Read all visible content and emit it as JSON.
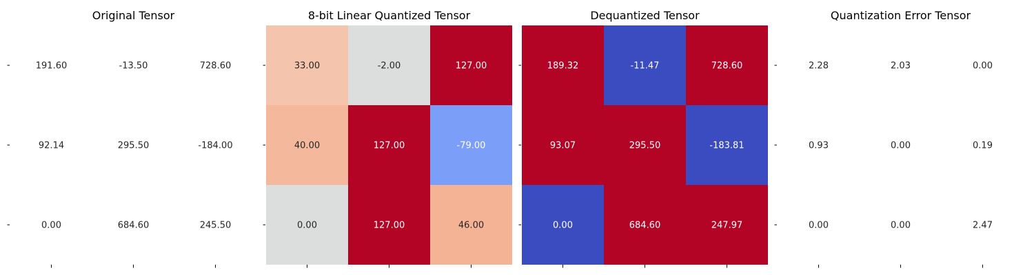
{
  "chart_data": [
    {
      "type": "heatmap",
      "title": "Original Tensor",
      "values": [
        [
          191.6,
          -13.5,
          728.6
        ],
        [
          92.14,
          295.5,
          -184.0
        ],
        [
          0.0,
          684.6,
          245.5
        ]
      ],
      "labels": [
        [
          "191.60",
          "-13.50",
          "728.60"
        ],
        [
          "92.14",
          "295.50",
          "-184.00"
        ],
        [
          "0.00",
          "684.60",
          "245.50"
        ]
      ],
      "cell_colors": [
        [
          "#ffffff",
          "#ffffff",
          "#ffffff"
        ],
        [
          "#ffffff",
          "#ffffff",
          "#ffffff"
        ],
        [
          "#ffffff",
          "#ffffff",
          "#ffffff"
        ]
      ],
      "text_colors": [
        [
          "#262626",
          "#262626",
          "#262626"
        ],
        [
          "#262626",
          "#262626",
          "#262626"
        ],
        [
          "#262626",
          "#262626",
          "#262626"
        ]
      ],
      "colormap": "none"
    },
    {
      "type": "heatmap",
      "title": "8-bit Linear Quantized Tensor",
      "values": [
        [
          33.0,
          -2.0,
          127.0
        ],
        [
          40.0,
          127.0,
          -79.0
        ],
        [
          0.0,
          127.0,
          46.0
        ]
      ],
      "labels": [
        [
          "33.00",
          "-2.00",
          "127.00"
        ],
        [
          "40.00",
          "127.00",
          "-79.00"
        ],
        [
          "0.00",
          "127.00",
          "46.00"
        ]
      ],
      "cell_colors": [
        [
          "#f4c4ac",
          "#dcdddd",
          "#b40426"
        ],
        [
          "#f4b99d",
          "#b40426",
          "#7b9ff9"
        ],
        [
          "#dcdddd",
          "#b40426",
          "#f5b396"
        ]
      ],
      "text_colors": [
        [
          "#262626",
          "#262626",
          "#ffffff"
        ],
        [
          "#262626",
          "#ffffff",
          "#ffffff"
        ],
        [
          "#262626",
          "#ffffff",
          "#262626"
        ]
      ],
      "colormap": "coolwarm"
    },
    {
      "type": "heatmap",
      "title": "Dequantized Tensor",
      "values": [
        [
          189.32,
          -11.47,
          728.6
        ],
        [
          93.07,
          295.5,
          -183.81
        ],
        [
          0.0,
          684.6,
          247.97
        ]
      ],
      "labels": [
        [
          "189.32",
          "-11.47",
          "728.60"
        ],
        [
          "93.07",
          "295.50",
          "-183.81"
        ],
        [
          "0.00",
          "684.60",
          "247.97"
        ]
      ],
      "cell_colors": [
        [
          "#b40426",
          "#3b4cc0",
          "#b40426"
        ],
        [
          "#b40426",
          "#b40426",
          "#3b4cc0"
        ],
        [
          "#3b4cc0",
          "#b40426",
          "#b40426"
        ]
      ],
      "text_colors": [
        [
          "#ffffff",
          "#ffffff",
          "#ffffff"
        ],
        [
          "#ffffff",
          "#ffffff",
          "#ffffff"
        ],
        [
          "#ffffff",
          "#ffffff",
          "#ffffff"
        ]
      ],
      "colormap": "coolwarm"
    },
    {
      "type": "heatmap",
      "title": "Quantization Error Tensor",
      "values": [
        [
          2.28,
          2.03,
          0.0
        ],
        [
          0.93,
          0.0,
          0.19
        ],
        [
          0.0,
          0.0,
          2.47
        ]
      ],
      "labels": [
        [
          "2.28",
          "2.03",
          "0.00"
        ],
        [
          "0.93",
          "0.00",
          "0.19"
        ],
        [
          "0.00",
          "0.00",
          "2.47"
        ]
      ],
      "cell_colors": [
        [
          "#ffffff",
          "#ffffff",
          "#ffffff"
        ],
        [
          "#ffffff",
          "#ffffff",
          "#ffffff"
        ],
        [
          "#ffffff",
          "#ffffff",
          "#ffffff"
        ]
      ],
      "text_colors": [
        [
          "#262626",
          "#262626",
          "#262626"
        ],
        [
          "#262626",
          "#262626",
          "#262626"
        ],
        [
          "#262626",
          "#262626",
          "#262626"
        ]
      ],
      "colormap": "none"
    }
  ]
}
